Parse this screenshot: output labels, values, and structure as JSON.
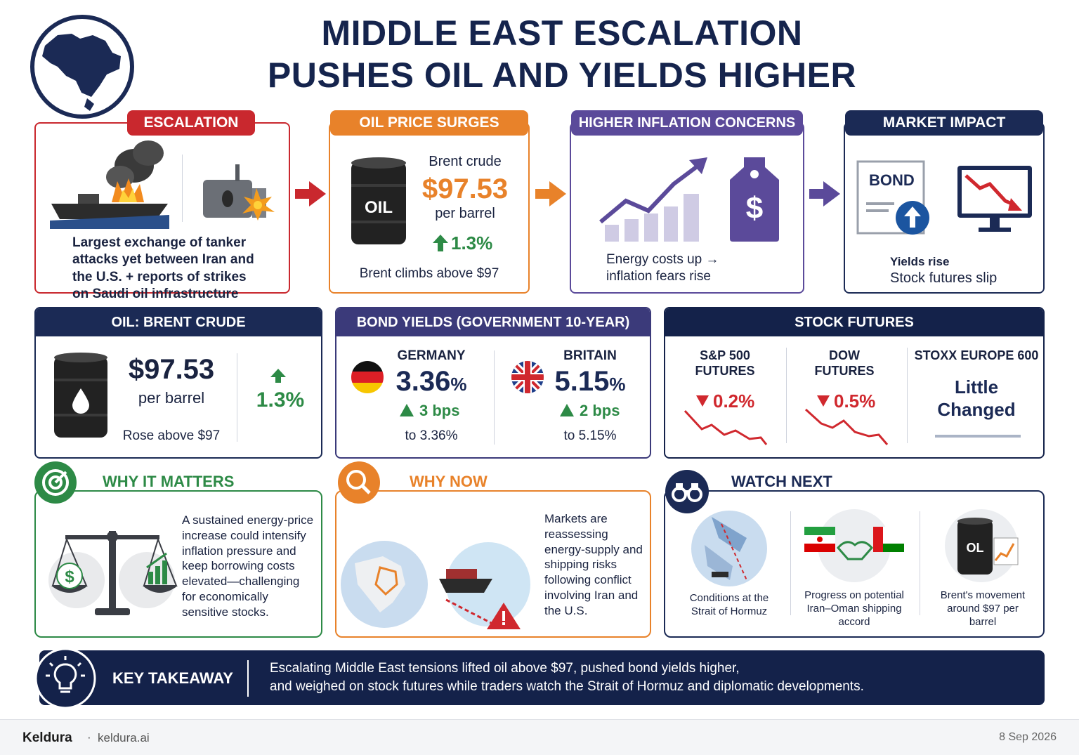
{
  "header": {
    "title_line1": "MIDDLE EAST ESCALATION",
    "title_line2": "PUSHES OIL AND YIELDS HIGHER"
  },
  "flow": {
    "escalation": {
      "tag": "ESCALATION",
      "text": "Largest exchange of tanker attacks yet between Iran and the U.S. + reports of strikes on Saudi oil infrastructure"
    },
    "oil_surge": {
      "tag": "OIL PRICE SURGES",
      "barrel_label": "OIL",
      "name": "Brent crude",
      "price": "$97.53",
      "unit": "per barrel",
      "change": "1.3%",
      "caption": "Brent climbs above $97"
    },
    "inflation": {
      "tag": "HIGHER INFLATION CONCERNS",
      "text": "Energy costs up → inflation fears rise",
      "tag_symbol": "$"
    },
    "market": {
      "tag": "MARKET IMPACT",
      "bond_label": "BOND",
      "line1": "Yields rise",
      "line2": "Stock futures slip"
    }
  },
  "oil_panel": {
    "header": "OIL: BRENT CRUDE",
    "price": "$97.53",
    "unit": "per barrel",
    "caption": "Rose above $97",
    "change": "1.3%"
  },
  "bonds_panel": {
    "header": "BOND YIELDS (GOVERNMENT 10-YEAR)",
    "items": [
      {
        "country": "GERMANY",
        "yield": "3.36",
        "pct": "%",
        "change": "3 bps",
        "to": "to 3.36%"
      },
      {
        "country": "BRITAIN",
        "yield": "5.15",
        "pct": "%",
        "change": "2 bps",
        "to": "to 5.15%"
      }
    ]
  },
  "futures_panel": {
    "header": "STOCK FUTURES",
    "items": [
      {
        "name_line1": "S&P 500",
        "name_line2": "FUTURES",
        "change": "0.2%"
      },
      {
        "name_line1": "DOW",
        "name_line2": "FUTURES",
        "change": "0.5%"
      },
      {
        "name_line1": "STOXX EUROPE 600",
        "status_line1": "Little",
        "status_line2": "Changed"
      }
    ]
  },
  "why_matters": {
    "title": "WHY IT MATTERS",
    "text": "A sustained energy-price increase could intensify inflation pressure and keep borrowing costs elevated—challenging for economically sensitive stocks.",
    "scale_symbol": "$"
  },
  "why_now": {
    "title": "WHY NOW",
    "text": "Markets are reassessing energy-supply and shipping risks following conflict involving Iran and the U.S."
  },
  "watch_next": {
    "title": "WATCH NEXT",
    "items": [
      "Conditions at the Strait of Hormuz",
      "Progress on potential Iran–Oman shipping accord",
      "Brent's movement around $97 per barrel"
    ],
    "barrel_label": "OL"
  },
  "takeaway": {
    "label": "KEY TAKEAWAY",
    "line1": "Escalating Middle East tensions lifted oil above $97, pushed bond yields higher,",
    "line2": "and weighed on stock futures while traders watch the Strait of Hormuz and diplomatic developments."
  },
  "footer": {
    "brand": "Keldura",
    "separator": "·",
    "site": "keldura.ai",
    "date": "8 Sep 2026"
  },
  "colors": {
    "navy": "#1b2a55",
    "red": "#c9282e",
    "orange": "#e8822a",
    "purple": "#5b4a9a",
    "green": "#2d8a46"
  }
}
